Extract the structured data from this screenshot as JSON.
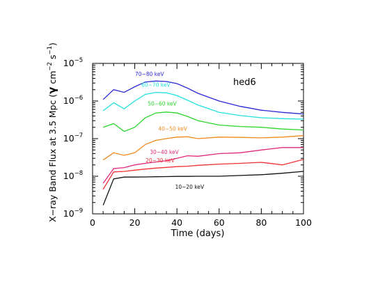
{
  "chart_data": {
    "type": "line",
    "title": "",
    "annotation": "hed6",
    "xlabel": "Time (days)",
    "ylabel_parts": [
      "X−ray Band Flux at 3.5 Mpc (",
      "γ",
      " cm",
      "−2",
      " s",
      "−1",
      ")"
    ],
    "xlim": [
      0,
      100
    ],
    "ylim": [
      1e-09,
      1e-05
    ],
    "yscale": "log",
    "grid": false,
    "legend": "none",
    "x_ticks": [
      "0",
      "20",
      "40",
      "60",
      "80",
      "100"
    ],
    "y_tick_base": "10",
    "y_tick_exponents": [
      "−9",
      "−8",
      "−7",
      "−6",
      "−5"
    ],
    "x": [
      5,
      10,
      15,
      20,
      25,
      30,
      35,
      40,
      45,
      50,
      60,
      70,
      80,
      90,
      100
    ],
    "series": [
      {
        "name": "70−80 keV",
        "color": "#2a2ad6",
        "values": [
          1.1e-06,
          2e-06,
          1.7e-06,
          2.4e-06,
          3.2e-06,
          3.4e-06,
          3.3e-06,
          2.9e-06,
          2.2e-06,
          1.6e-06,
          1e-06,
          7.2e-07,
          5.7e-07,
          5e-07,
          4.5e-07
        ]
      },
      {
        "name": "60−70 keV",
        "color": "#22e0e0",
        "values": [
          5.5e-07,
          9e-07,
          6.2e-07,
          1e-06,
          1.5e-06,
          1.7e-06,
          1.65e-06,
          1.4e-06,
          1.05e-06,
          7.8e-07,
          5e-07,
          4.1e-07,
          3.6e-07,
          3.4e-07,
          3.3e-07
        ]
      },
      {
        "name": "50−60 keV",
        "color": "#2bd62b",
        "values": [
          2e-07,
          2.5e-07,
          1.55e-07,
          2e-07,
          3.6e-07,
          4.8e-07,
          5.1e-07,
          4.8e-07,
          3.9e-07,
          3e-07,
          2.3e-07,
          2.1e-07,
          2e-07,
          1.8e-07,
          1.7e-07
        ]
      },
      {
        "name": "40−50 keV",
        "color": "#f08a1c",
        "values": [
          2.7e-08,
          4.2e-08,
          3.6e-08,
          4.2e-08,
          7e-08,
          9e-08,
          1e-07,
          1.1e-07,
          1.12e-07,
          1e-07,
          1.1e-07,
          1.08e-07,
          1.05e-07,
          1.1e-07,
          1.2e-07
        ]
      },
      {
        "name": "30−40 keV",
        "color": "#e0287a",
        "values": [
          6.5e-09,
          1.6e-08,
          1.7e-08,
          2e-08,
          2.2e-08,
          2.4e-08,
          2.6e-08,
          3e-08,
          3.5e-08,
          3.4e-08,
          4e-08,
          4.2e-08,
          5e-08,
          5.8e-08,
          5.8e-08
        ]
      },
      {
        "name": "20−30 keV",
        "color": "#ef3030",
        "values": [
          4.5e-09,
          1.3e-08,
          1.35e-08,
          1.45e-08,
          1.55e-08,
          1.65e-08,
          1.72e-08,
          1.8e-08,
          1.85e-08,
          1.95e-08,
          2.1e-08,
          2.2e-08,
          2.35e-08,
          2e-08,
          2.8e-08
        ]
      },
      {
        "name": "10−20 keV",
        "color": "#111111",
        "values": [
          1.7e-09,
          8.5e-09,
          9.5e-09,
          9.5e-09,
          9.6e-09,
          9.7e-09,
          9.8e-09,
          9.9e-09,
          9.9e-09,
          1e-08,
          1e-08,
          1.05e-08,
          1.1e-08,
          1.2e-08,
          1.35e-08
        ]
      }
    ]
  }
}
